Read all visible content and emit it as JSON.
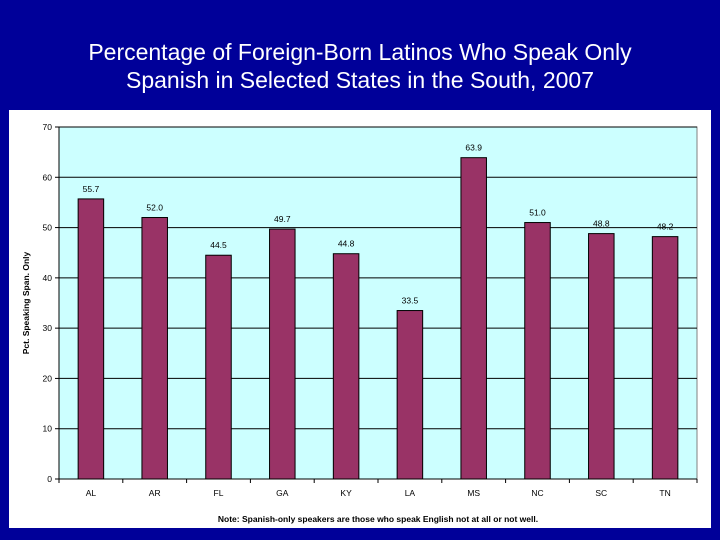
{
  "slide": {
    "title_line1": "Percentage of Foreign-Born Latinos Who Speak Only",
    "title_line2": "Spanish in Selected States in the South, 2007"
  },
  "chart_data": {
    "type": "bar",
    "title": "",
    "ylabel": "Pct. Speaking Span. Only",
    "xlabel": "Note: Spanish-only speakers are those who speak English not at all or not well.",
    "categories": [
      "AL",
      "AR",
      "FL",
      "GA",
      "KY",
      "LA",
      "MS",
      "NC",
      "SC",
      "TN"
    ],
    "values": [
      55.7,
      52.0,
      44.5,
      49.7,
      44.8,
      33.5,
      63.9,
      51.0,
      48.8,
      48.2
    ],
    "data_labels": [
      "55.7",
      "52.0",
      "44.5",
      "49.7",
      "44.8",
      "33.5",
      "63.9",
      "51.0",
      "48.8",
      "48.2"
    ],
    "ylim": [
      0,
      70
    ],
    "yticks": [
      "0",
      "10",
      "20",
      "30",
      "40",
      "50",
      "60",
      "70"
    ],
    "grid": true,
    "legend": "none",
    "colors": {
      "bar_fill": "#993366",
      "bar_stroke": "#000000",
      "plot_background": "#ccffff",
      "gridline": "#000000",
      "slide_background": "#000099"
    }
  }
}
